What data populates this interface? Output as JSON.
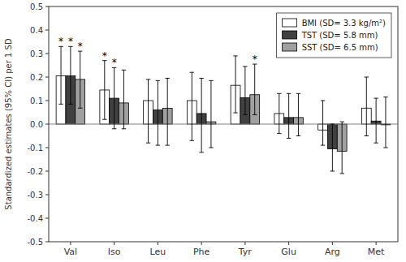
{
  "chart_data": {
    "type": "bar",
    "categories": [
      "Val",
      "Iso",
      "Leu",
      "Phe",
      "Tyr",
      "Glu",
      "Arg",
      "Met"
    ],
    "series": [
      {
        "name": "BMI (SD= 3.3 kg/m²)",
        "color": "#ffffff",
        "values": [
          0.205,
          0.145,
          0.1,
          0.1,
          0.165,
          0.045,
          -0.025,
          0.068
        ],
        "ci_low": [
          0.085,
          0.02,
          -0.08,
          -0.07,
          0.048,
          -0.04,
          -0.09,
          -0.05
        ],
        "ci_high": [
          0.33,
          0.27,
          0.19,
          0.22,
          0.29,
          0.13,
          0.1,
          0.2
        ],
        "significance": [
          "*",
          "*",
          null,
          null,
          null,
          null,
          null,
          null
        ]
      },
      {
        "name": "TST (SD= 5.8 mm)",
        "color": "#404040",
        "values": [
          0.205,
          0.11,
          0.06,
          0.045,
          0.112,
          0.028,
          -0.105,
          0.013
        ],
        "ci_low": [
          0.085,
          -0.02,
          -0.09,
          -0.12,
          0.04,
          -0.06,
          -0.2,
          -0.08
        ],
        "ci_high": [
          0.33,
          0.24,
          0.185,
          0.195,
          0.245,
          0.13,
          0.0,
          0.11
        ],
        "significance": [
          "*",
          "*",
          null,
          null,
          null,
          null,
          null,
          null
        ]
      },
      {
        "name": "SST (SD= 6.5 mm)",
        "color": "#a0a0a0",
        "values": [
          0.19,
          0.09,
          0.067,
          0.01,
          0.125,
          0.028,
          -0.115,
          -0.003
        ],
        "ci_low": [
          0.068,
          -0.02,
          -0.09,
          -0.1,
          0.04,
          -0.05,
          -0.21,
          -0.1
        ],
        "ci_high": [
          0.31,
          0.23,
          0.195,
          0.185,
          0.255,
          0.13,
          0.01,
          0.115
        ],
        "significance": [
          "*",
          null,
          null,
          null,
          "*",
          null,
          null,
          null
        ]
      }
    ],
    "ylabel": "Standardized estimates (95% CI) per 1 SD",
    "ylim": [
      -0.5,
      0.5
    ],
    "yticks": [
      -0.5,
      -0.4,
      -0.3,
      -0.2,
      -0.1,
      {
        "value": 0.0,
        "label": "0.0"
      },
      0.1,
      0.2,
      0.3,
      0.4,
      0.5
    ],
    "legend": "upper right",
    "grid": false
  }
}
